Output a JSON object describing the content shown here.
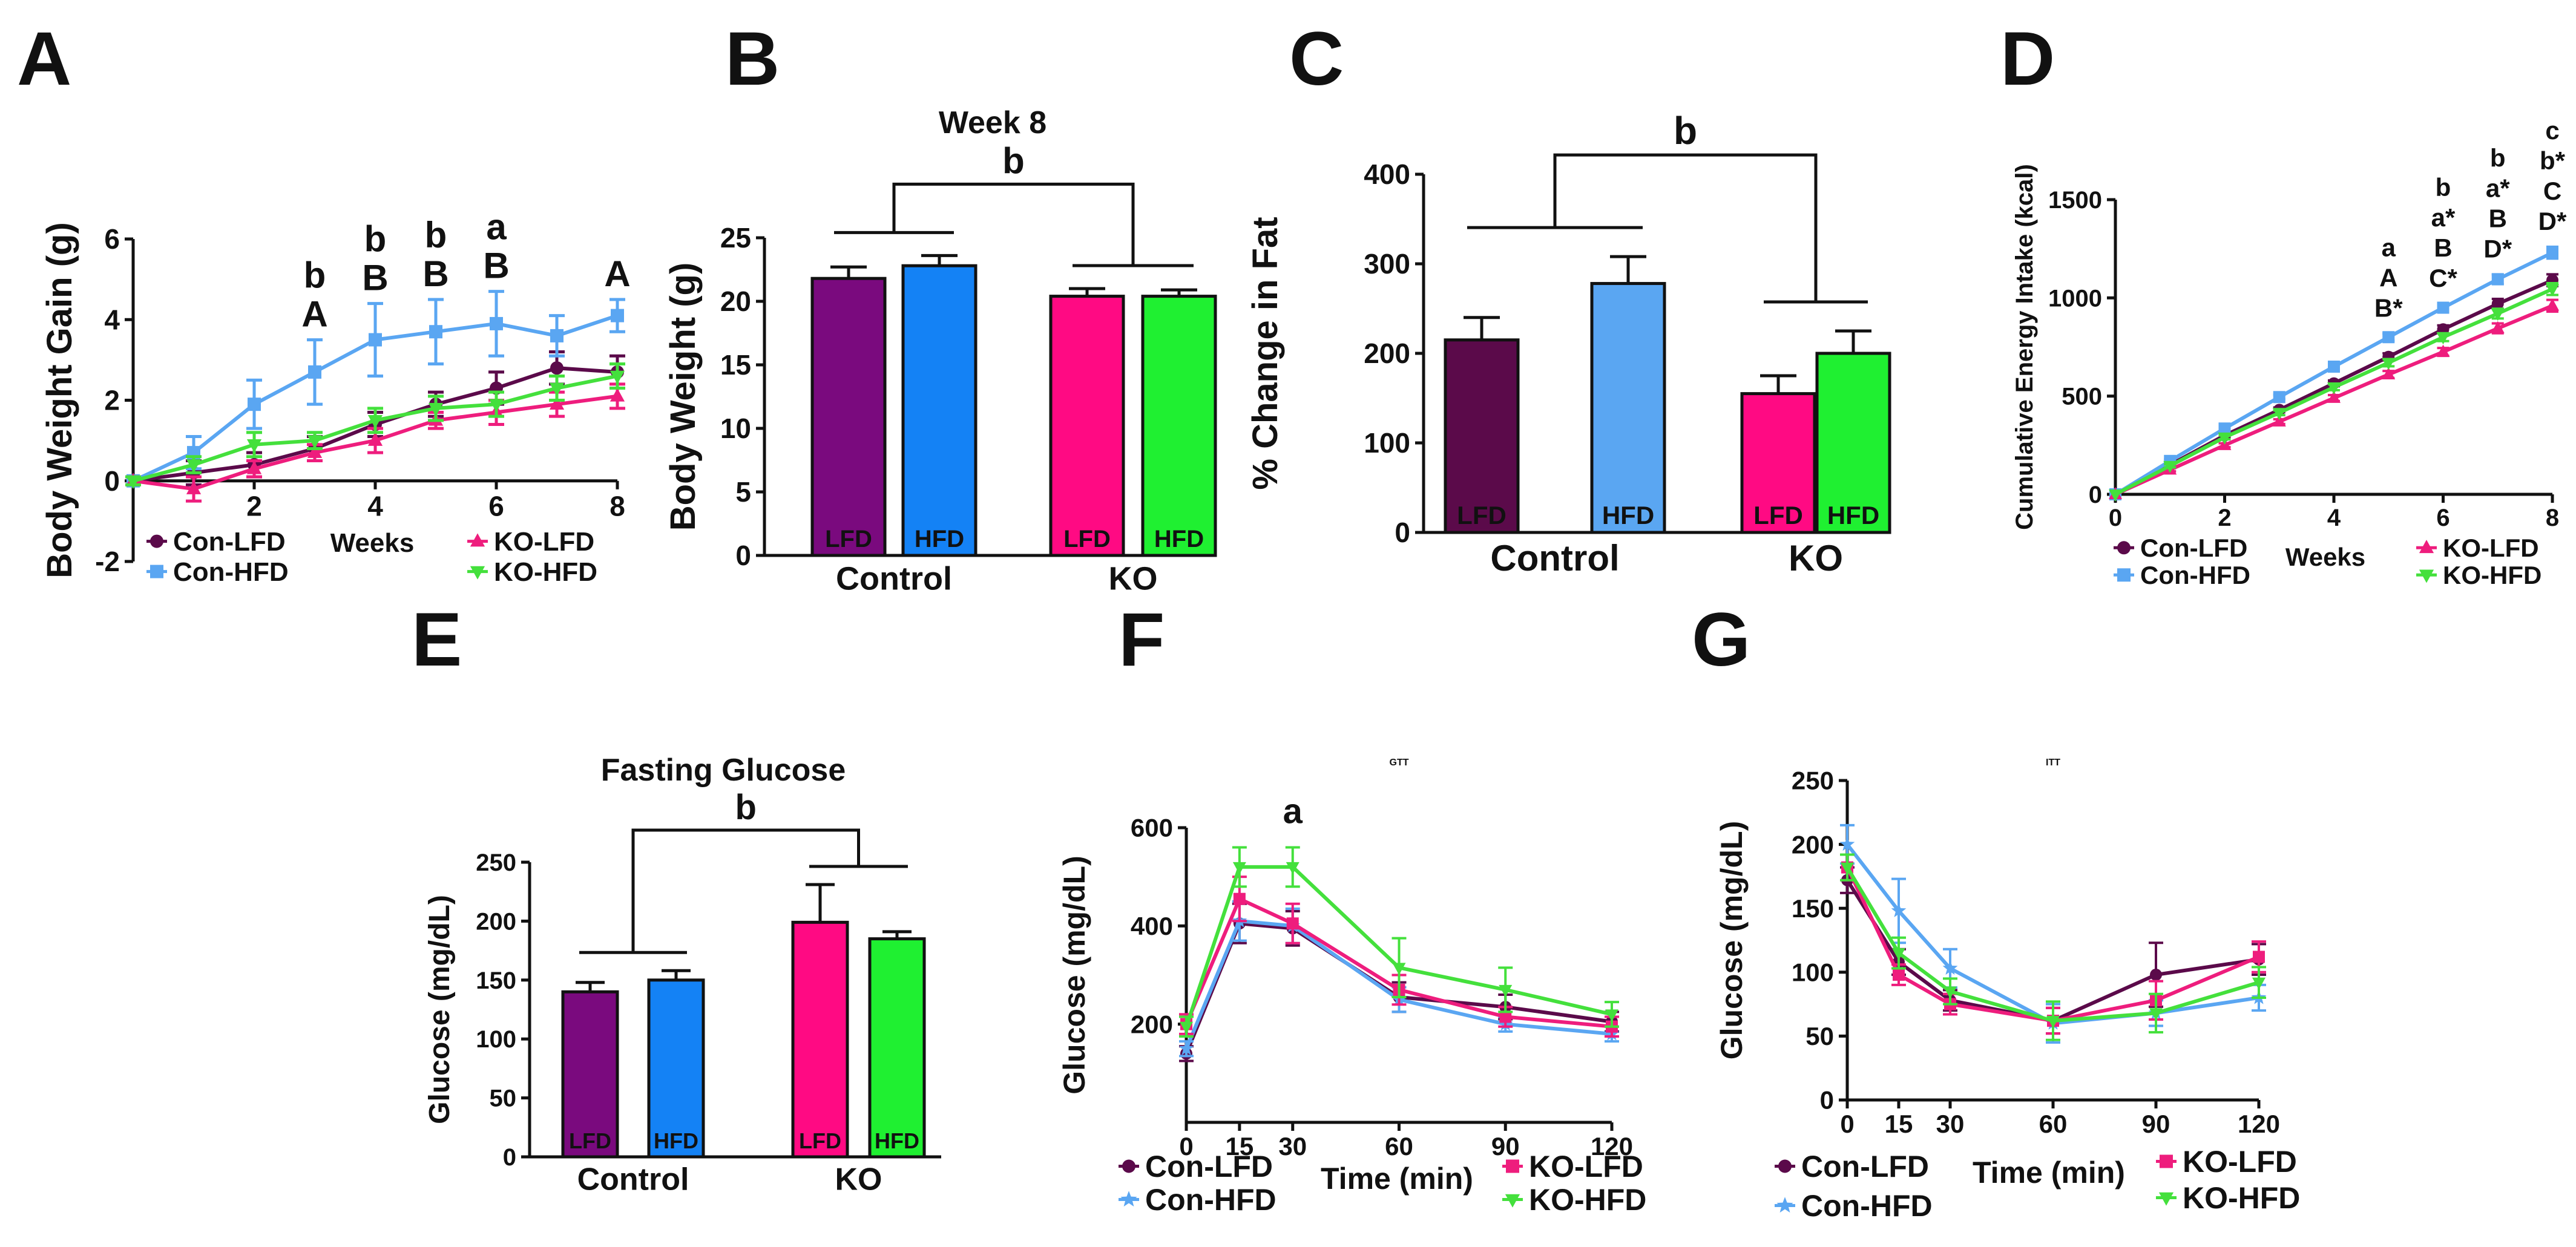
{
  "panels": {
    "A": "A",
    "B": "B",
    "C": "C",
    "D": "D",
    "E": "E",
    "F": "F",
    "G": "G"
  },
  "legend": {
    "con_lfd": "Con-LFD",
    "con_hfd": "Con-HFD",
    "ko_lfd": "KO-LFD",
    "ko_hfd": "KO-HFD"
  },
  "colors": {
    "con_lfd": "#5b0a4a",
    "con_hfd": "#5aa6f2",
    "ko_lfd": "#ee1d7d",
    "ko_hfd": "#44e03c",
    "e_con_lfd": "#7a0a7e",
    "e_ko_lfd": "#ff0a83",
    "bar_con_hfd": "#1482f5",
    "bar_ko_hfd": "#1ff031"
  },
  "chart_data": [
    {
      "id": "A",
      "type": "line",
      "title": "",
      "xlabel": "Weeks",
      "ylabel": "Body Weight Gain (g)",
      "xlim": [
        0,
        8
      ],
      "ylim": [
        -2,
        6
      ],
      "xticks": [
        2,
        4,
        6,
        8
      ],
      "yticks": [
        -2,
        0,
        2,
        4,
        6
      ],
      "x": [
        0,
        1,
        2,
        3,
        4,
        5,
        6,
        7,
        8
      ],
      "series": [
        {
          "name": "Con-LFD",
          "key": "con_lfd",
          "marker": "circle",
          "values": [
            0,
            0.2,
            0.4,
            0.8,
            1.4,
            1.9,
            2.3,
            2.8,
            2.7
          ],
          "err": [
            0.1,
            0.3,
            0.3,
            0.3,
            0.3,
            0.3,
            0.4,
            0.4,
            0.4
          ]
        },
        {
          "name": "Con-HFD",
          "key": "con_hfd",
          "marker": "square",
          "values": [
            0,
            0.7,
            1.9,
            2.7,
            3.5,
            3.7,
            3.9,
            3.6,
            4.1
          ],
          "err": [
            0.1,
            0.4,
            0.6,
            0.8,
            0.9,
            0.8,
            0.8,
            0.5,
            0.4
          ]
        },
        {
          "name": "KO-LFD",
          "key": "ko_lfd",
          "marker": "triangle",
          "values": [
            0,
            -0.2,
            0.3,
            0.7,
            1.0,
            1.5,
            1.7,
            1.9,
            2.1
          ],
          "err": [
            0.1,
            0.3,
            0.2,
            0.2,
            0.3,
            0.2,
            0.3,
            0.3,
            0.3
          ]
        },
        {
          "name": "KO-HFD",
          "key": "ko_hfd",
          "marker": "triangle-down",
          "values": [
            0,
            0.4,
            0.9,
            1.0,
            1.5,
            1.8,
            1.9,
            2.3,
            2.6
          ],
          "err": [
            0.1,
            0.2,
            0.3,
            0.2,
            0.3,
            0.3,
            0.3,
            0.3,
            0.3
          ]
        }
      ],
      "annotations": [
        {
          "x": 3,
          "lines": [
            "b",
            "A"
          ]
        },
        {
          "x": 4,
          "lines": [
            "b",
            "B"
          ]
        },
        {
          "x": 5,
          "lines": [
            "b",
            "B"
          ]
        },
        {
          "x": 6,
          "lines": [
            "a",
            "B"
          ]
        },
        {
          "x": 8,
          "lines": [
            "A"
          ]
        }
      ]
    },
    {
      "id": "B",
      "type": "bar",
      "title": "Week 8",
      "ylabel": "Body Weight (g)",
      "ylim": [
        0,
        25
      ],
      "yticks": [
        0,
        5,
        10,
        15,
        20,
        25
      ],
      "groups": [
        "Control",
        "KO"
      ],
      "bars": [
        {
          "group": "Control",
          "label": "LFD",
          "value": 21.8,
          "err": 0.9,
          "color_key": "e_con_lfd",
          "label_color": "#ffffff"
        },
        {
          "group": "Control",
          "label": "HFD",
          "value": 22.8,
          "err": 0.8,
          "color_key": "bar_con_hfd",
          "label_color": "#111111"
        },
        {
          "group": "KO",
          "label": "LFD",
          "value": 20.4,
          "err": 0.6,
          "color_key": "e_ko_lfd",
          "label_color": "#111111"
        },
        {
          "group": "KO",
          "label": "HFD",
          "value": 20.4,
          "err": 0.5,
          "color_key": "bar_ko_hfd",
          "label_color": "#111111"
        }
      ],
      "bracket_label": "b"
    },
    {
      "id": "C",
      "type": "bar",
      "title": "",
      "ylabel": "% Change in Fat",
      "ylim": [
        0,
        400
      ],
      "yticks": [
        0,
        100,
        200,
        300,
        400
      ],
      "groups": [
        "Control",
        "KO"
      ],
      "bars": [
        {
          "group": "Control",
          "label": "LFD",
          "value": 215,
          "err": 25,
          "color_key": "con_lfd",
          "label_color": "#ffffff"
        },
        {
          "group": "Control",
          "label": "HFD",
          "value": 278,
          "err": 30,
          "color_key": "con_hfd",
          "label_color": "#ffffff"
        },
        {
          "group": "KO",
          "label": "LFD",
          "value": 155,
          "err": 20,
          "color_key": "e_ko_lfd",
          "label_color": "#111111"
        },
        {
          "group": "KO",
          "label": "HFD",
          "value": 200,
          "err": 25,
          "color_key": "bar_ko_hfd",
          "label_color": "#111111"
        }
      ],
      "bracket_label": "b"
    },
    {
      "id": "D",
      "type": "line",
      "title": "",
      "xlabel": "Weeks",
      "ylabel": "Cumulative Energy Intake (kcal)",
      "xlim": [
        0,
        8
      ],
      "ylim": [
        0,
        1500
      ],
      "xticks": [
        0,
        2,
        4,
        6,
        8
      ],
      "yticks": [
        0,
        500,
        1000,
        1500
      ],
      "x": [
        0,
        1,
        2,
        3,
        4,
        5,
        6,
        7,
        8
      ],
      "series": [
        {
          "name": "Con-LFD",
          "key": "con_lfd",
          "marker": "circle",
          "values": [
            0,
            150,
            300,
            430,
            565,
            700,
            840,
            970,
            1090
          ],
          "err": [
            0,
            8,
            10,
            12,
            15,
            18,
            20,
            25,
            30
          ]
        },
        {
          "name": "Con-HFD",
          "key": "con_hfd",
          "marker": "square",
          "values": [
            0,
            170,
            335,
            495,
            650,
            800,
            950,
            1095,
            1230
          ],
          "err": [
            0,
            8,
            10,
            12,
            15,
            18,
            20,
            25,
            30
          ]
        },
        {
          "name": "KO-LFD",
          "key": "ko_lfd",
          "marker": "triangle",
          "values": [
            0,
            125,
            250,
            370,
            490,
            610,
            725,
            845,
            960
          ],
          "err": [
            0,
            8,
            10,
            12,
            15,
            18,
            20,
            25,
            30
          ]
        },
        {
          "name": "KO-HFD",
          "key": "ko_hfd",
          "marker": "triangle-down",
          "values": [
            0,
            145,
            290,
            415,
            545,
            670,
            800,
            920,
            1045
          ],
          "err": [
            0,
            8,
            10,
            12,
            15,
            18,
            20,
            25,
            30
          ]
        }
      ],
      "annotations": [
        {
          "x": 5,
          "lines": [
            "a",
            "A",
            "B*"
          ]
        },
        {
          "x": 6,
          "lines": [
            "b",
            "a*",
            "B",
            "C*"
          ]
        },
        {
          "x": 7,
          "lines": [
            "b",
            "a*",
            "B",
            "D*"
          ]
        },
        {
          "x": 8,
          "lines": [
            "c",
            "b*",
            "C",
            "D*"
          ]
        }
      ]
    },
    {
      "id": "E",
      "type": "bar",
      "title": "Fasting Glucose",
      "ylabel": "Glucose (mg/dL)",
      "ylim": [
        0,
        250
      ],
      "yticks": [
        0,
        50,
        100,
        150,
        200,
        250
      ],
      "groups": [
        "Control",
        "KO"
      ],
      "bars": [
        {
          "group": "Control",
          "label": "LFD",
          "value": 140,
          "err": 8,
          "color_key": "e_con_lfd",
          "label_color": "#ffffff"
        },
        {
          "group": "Control",
          "label": "HFD",
          "value": 150,
          "err": 8,
          "color_key": "bar_con_hfd",
          "label_color": "#111111"
        },
        {
          "group": "KO",
          "label": "LFD",
          "value": 199,
          "err": 32,
          "color_key": "e_ko_lfd",
          "label_color": "#111111"
        },
        {
          "group": "KO",
          "label": "HFD",
          "value": 185,
          "err": 6,
          "color_key": "bar_ko_hfd",
          "label_color": "#111111"
        }
      ],
      "bracket_label": "b"
    },
    {
      "id": "F",
      "type": "line",
      "title": "GTT",
      "xlabel": "Time (min)",
      "ylabel": "Glucose (mg/dL)",
      "xlim": [
        0,
        120
      ],
      "ylim": [
        0,
        600
      ],
      "xticks": [
        0,
        15,
        30,
        60,
        90,
        120
      ],
      "yticks": [
        200,
        400,
        600
      ],
      "x": [
        0,
        15,
        30,
        60,
        90,
        120
      ],
      "series": [
        {
          "name": "Con-LFD",
          "key": "con_lfd",
          "marker": "circle",
          "values": [
            140,
            405,
            395,
            255,
            235,
            205
          ],
          "err": [
            15,
            40,
            35,
            30,
            25,
            20
          ]
        },
        {
          "name": "Con-HFD",
          "key": "con_hfd",
          "marker": "star",
          "values": [
            150,
            410,
            400,
            250,
            200,
            180
          ],
          "err": [
            15,
            40,
            35,
            25,
            15,
            15
          ]
        },
        {
          "name": "KO-LFD",
          "key": "ko_lfd",
          "marker": "square",
          "values": [
            200,
            455,
            405,
            270,
            215,
            195
          ],
          "err": [
            20,
            45,
            40,
            30,
            20,
            20
          ]
        },
        {
          "name": "KO-HFD",
          "key": "ko_hfd",
          "marker": "triangle-down",
          "values": [
            195,
            520,
            520,
            315,
            270,
            220
          ],
          "err": [
            20,
            40,
            40,
            60,
            45,
            25
          ]
        }
      ],
      "annotations": [
        {
          "x": 30,
          "lines": [
            "a"
          ]
        }
      ]
    },
    {
      "id": "G",
      "type": "line",
      "title": "ITT",
      "xlabel": "Time (min)",
      "ylabel": "Glucose (mg/dL)",
      "xlim": [
        0,
        120
      ],
      "ylim": [
        0,
        250
      ],
      "xticks": [
        0,
        15,
        30,
        60,
        90,
        120
      ],
      "yticks": [
        0,
        50,
        100,
        150,
        200,
        250
      ],
      "x": [
        0,
        15,
        30,
        60,
        90,
        120
      ],
      "series": [
        {
          "name": "Con-LFD",
          "key": "con_lfd",
          "marker": "circle",
          "values": [
            172,
            108,
            78,
            62,
            98,
            110
          ],
          "err": [
            10,
            10,
            8,
            10,
            25,
            12
          ]
        },
        {
          "name": "Con-HFD",
          "key": "con_hfd",
          "marker": "star",
          "values": [
            200,
            148,
            103,
            60,
            68,
            80
          ],
          "err": [
            15,
            25,
            15,
            15,
            10,
            10
          ]
        },
        {
          "name": "KO-LFD",
          "key": "ko_lfd",
          "marker": "square",
          "values": [
            182,
            98,
            75,
            62,
            78,
            112
          ],
          "err": [
            10,
            8,
            8,
            10,
            15,
            12
          ]
        },
        {
          "name": "KO-HFD",
          "key": "ko_hfd",
          "marker": "triangle-down",
          "values": [
            182,
            115,
            85,
            62,
            68,
            92
          ],
          "err": [
            10,
            12,
            10,
            15,
            15,
            12
          ]
        }
      ],
      "annotations": []
    }
  ]
}
